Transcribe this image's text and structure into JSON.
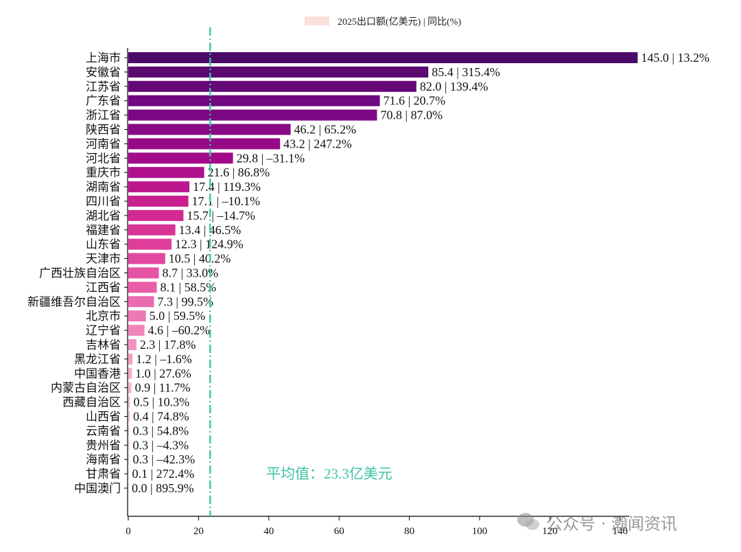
{
  "chart_data": {
    "type": "bar",
    "orientation": "horizontal",
    "legend": {
      "label": "2025出口额(亿美元) | 同比(%)",
      "color": "#fde0dc",
      "placement": "top-center"
    },
    "categories": [
      "上海市",
      "安徽省",
      "江苏省",
      "广东省",
      "浙江省",
      "陕西省",
      "河南省",
      "河北省",
      "重庆市",
      "湖南省",
      "四川省",
      "湖北省",
      "福建省",
      "山东省",
      "天津市",
      "广西壮族自治区",
      "江西省",
      "新疆维吾尔自治区",
      "北京市",
      "辽宁省",
      "吉林省",
      "黑龙江省",
      "中国香港",
      "内蒙古自治区",
      "西藏自治区",
      "山西省",
      "云南省",
      "贵州省",
      "海南省",
      "甘肃省",
      "中国澳门"
    ],
    "values": [
      145.0,
      85.4,
      82.0,
      71.6,
      70.8,
      46.2,
      43.2,
      29.8,
      21.6,
      17.4,
      17.1,
      15.7,
      13.4,
      12.3,
      10.5,
      8.7,
      8.1,
      7.3,
      5.0,
      4.6,
      2.3,
      1.2,
      1.0,
      0.9,
      0.5,
      0.4,
      0.3,
      0.3,
      0.3,
      0.1,
      0.0
    ],
    "data_labels": [
      "145.0 | 13.2%",
      "85.4 | 315.4%",
      "82.0 | 139.4%",
      "71.6 | 20.7%",
      "70.8 | 87.0%",
      "46.2 | 65.2%",
      "43.2 | 247.2%",
      "29.8 | –31.1%",
      "21.6 | 86.8%",
      "17.4 | 119.3%",
      "17.1 | –10.1%",
      "15.7 | –14.7%",
      "13.4 | 46.5%",
      "12.3 | 124.9%",
      "10.5 | 40.2%",
      "8.7 | 33.0%",
      "8.1 | 58.5%",
      "7.3 | 99.5%",
      "5.0 | 59.5%",
      "4.6 | –60.2%",
      "2.3 | 17.8%",
      "1.2 | –1.6%",
      "1.0 | 27.6%",
      "0.9 | 11.7%",
      "0.5 | 10.3%",
      "0.4 | 74.8%",
      "0.3 | 54.8%",
      "0.3 | –4.3%",
      "0.3 | –42.3%",
      "0.1 | 272.4%",
      "0.0 | 895.9%"
    ],
    "bar_colors": [
      "#4a0a6a",
      "#5a0a70",
      "#660878",
      "#700880",
      "#7c0883",
      "#8a0a86",
      "#960a88",
      "#a20a8a",
      "#b0108c",
      "#bc188e",
      "#c8208f",
      "#d22a92",
      "#d83496",
      "#de3e9a",
      "#e2489f",
      "#e652a4",
      "#ea5ea9",
      "#ec6aae",
      "#ee78b4",
      "#f085b9",
      "#f292bf",
      "#f49fc5",
      "#f6aacb",
      "#f7b6d1",
      "#f8c0d6",
      "#f9c9db",
      "#fad1df",
      "#fbd7e3",
      "#fbdce6",
      "#fce1e9",
      "#fde5ec"
    ],
    "xlim": [
      0,
      150
    ],
    "x_ticks": [
      0,
      20,
      40,
      60,
      80,
      100,
      120,
      140
    ],
    "x_tick_labels": [
      "0",
      "20",
      "40",
      "60",
      "80",
      "100",
      "120",
      "140"
    ],
    "average": {
      "value": 23.3,
      "label": "平均值：23.3亿美元",
      "color": "#3cc4a4"
    },
    "watermark": "公众号 · 瀚闻资讯"
  }
}
